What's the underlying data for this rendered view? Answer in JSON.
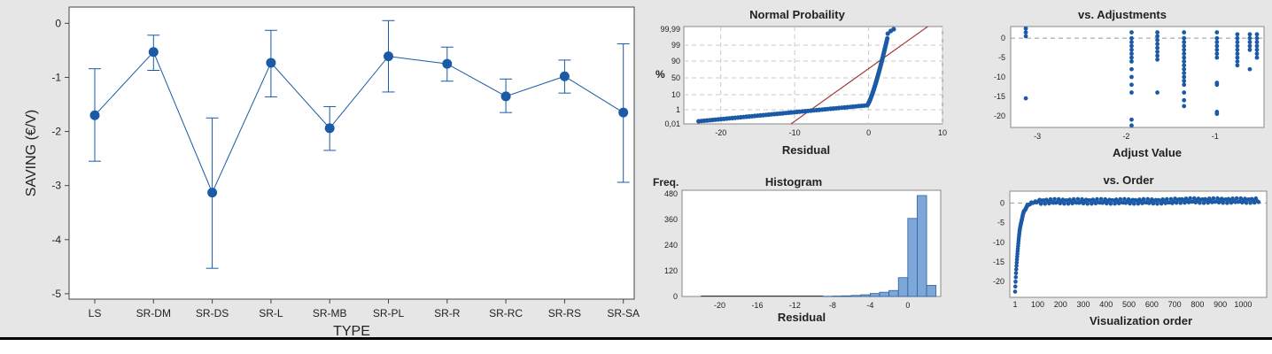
{
  "chart_data": [
    {
      "type": "scatter",
      "chart_subtype": "interval-plot",
      "title": "",
      "xlabel": "TYPE",
      "ylabel": "SAVING (€/V)",
      "ylim": [
        -5.1,
        0.3
      ],
      "yticks": [
        0,
        -1,
        -2,
        -3,
        -4,
        -5
      ],
      "categories": [
        "LS",
        "SR-DM",
        "SR-DS",
        "SR-L",
        "SR-MB",
        "SR-PL",
        "SR-R",
        "SR-RC",
        "SR-RS",
        "SR-SA"
      ],
      "means": [
        -1.7,
        -0.53,
        -3.13,
        -0.73,
        -1.94,
        -0.61,
        -0.75,
        -1.35,
        -0.98,
        -1.65
      ],
      "upper": [
        -0.84,
        -0.22,
        -1.75,
        -0.13,
        -1.54,
        0.05,
        -0.44,
        -1.03,
        -0.68,
        -0.38
      ],
      "lower": [
        -2.55,
        -0.87,
        -4.53,
        -1.36,
        -2.35,
        -1.27,
        -1.07,
        -1.65,
        -1.29,
        -2.94
      ]
    },
    {
      "type": "scatter",
      "title": "Normal Probaility",
      "xlabel": "Residual",
      "ylabel": "%",
      "xticks": [
        "-20",
        "-10",
        "0",
        "10"
      ],
      "xlim": [
        -25,
        10
      ],
      "yticks": [
        "99,99",
        "99",
        "90",
        "50",
        "10",
        "1",
        "0,01"
      ],
      "fit_line": {
        "from": [
          -10.5,
          "0,01"
        ],
        "to": [
          8,
          "99,99"
        ]
      }
    },
    {
      "type": "scatter",
      "title": "vs. Adjustments",
      "xlabel": "Adjust Value",
      "ylabel": "",
      "xticks": [
        "-3",
        "-2",
        "-1"
      ],
      "yticks": [
        "0",
        "-5",
        "-10",
        "-15",
        "-20"
      ],
      "xlim": [
        -3.3,
        -0.45
      ],
      "ylim": [
        -23,
        3
      ],
      "reference_line_y": 0,
      "clusters": [
        {
          "x": -3.13,
          "points": [
            2.5,
            1.5,
            0.5,
            -15.5
          ]
        },
        {
          "x": -1.94,
          "points": [
            1.5,
            0,
            -1,
            -2,
            -3,
            -4,
            -5,
            -6,
            -8,
            -10,
            -12,
            -14,
            -21,
            -22.5
          ]
        },
        {
          "x": -1.65,
          "points": [
            1.5,
            0.5,
            -0.5,
            -1.5,
            -2.5,
            -3.5,
            -4.5,
            -5.5,
            -14
          ]
        },
        {
          "x": -1.35,
          "points": [
            1.5,
            0,
            -1,
            -2,
            -3,
            -4,
            -5,
            -6,
            -7,
            -8,
            -9,
            -10,
            -11,
            -12,
            -14,
            -16,
            -17.5
          ]
        },
        {
          "x": -0.98,
          "points": [
            1.5,
            0,
            -1,
            -2,
            -3,
            -4,
            -5,
            -11.5,
            -12,
            -19,
            -19.5
          ]
        },
        {
          "x": -0.75,
          "points": [
            1,
            0,
            -1,
            -2,
            -3,
            -4,
            -5,
            -6,
            -7
          ]
        },
        {
          "x": -0.61,
          "points": [
            1,
            0,
            -1,
            -2,
            -3,
            -8
          ]
        },
        {
          "x": -0.53,
          "points": [
            1,
            0,
            -1,
            -2,
            -3,
            -4,
            -5
          ]
        }
      ]
    },
    {
      "type": "bar",
      "title": "Histogram",
      "xlabel": "Residual",
      "ylabel": "Freq.",
      "xticks": [
        "-20",
        "-16",
        "-12",
        "-8",
        "-4",
        "0"
      ],
      "yticks": [
        "0",
        "120",
        "240",
        "360",
        "480"
      ],
      "ylim": [
        0,
        480
      ],
      "bin_width": 1,
      "bin_starts": [
        -9,
        -8,
        -7,
        -6,
        -5,
        -4,
        -3,
        -2,
        -1,
        0,
        1,
        2
      ],
      "values": [
        1,
        2,
        3,
        5,
        8,
        14,
        20,
        28,
        88,
        365,
        472,
        52
      ]
    },
    {
      "type": "scatter",
      "title": "vs. Order",
      "xlabel": "Visualization order",
      "ylabel": "",
      "xticks": [
        "1",
        "100",
        "200",
        "300",
        "400",
        "500",
        "600",
        "700",
        "800",
        "900",
        "1000"
      ],
      "yticks": [
        "0",
        "-5",
        "-10",
        "-15",
        "-20"
      ],
      "xlim": [
        1,
        1080
      ],
      "ylim": [
        -24,
        3
      ],
      "reference_line_y": 0
    }
  ]
}
